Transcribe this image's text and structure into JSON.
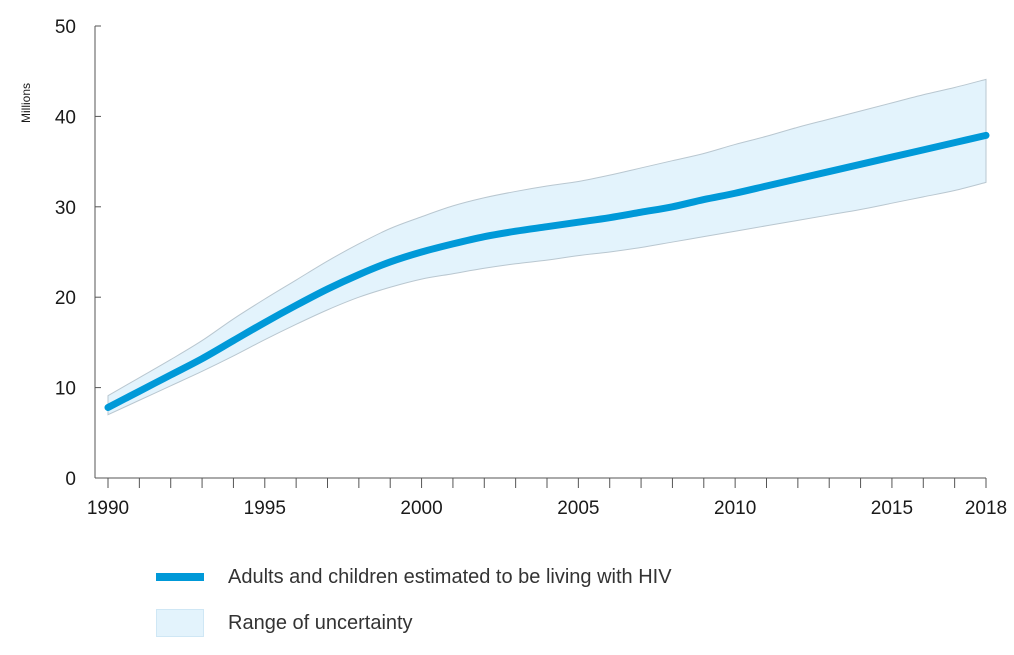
{
  "chart_data": {
    "type": "line",
    "title": "",
    "xlabel": "",
    "ylabel": "Millions",
    "xlim": [
      1990,
      2018
    ],
    "ylim": [
      0,
      50
    ],
    "yticks": [
      0,
      10,
      20,
      30,
      40,
      50
    ],
    "xtick_labels": [
      1990,
      1995,
      2000,
      2005,
      2010,
      2015,
      2018
    ],
    "minor_xticks": [
      1991,
      1992,
      1993,
      1994,
      1996,
      1997,
      1998,
      1999,
      2001,
      2002,
      2003,
      2004,
      2006,
      2007,
      2008,
      2009,
      2011,
      2012,
      2013,
      2014,
      2016,
      2017
    ],
    "x": [
      1990,
      1991,
      1992,
      1993,
      1994,
      1995,
      1996,
      1997,
      1998,
      1999,
      2000,
      2001,
      2002,
      2003,
      2004,
      2005,
      2006,
      2007,
      2008,
      2009,
      2010,
      2011,
      2012,
      2013,
      2014,
      2015,
      2016,
      2017,
      2018
    ],
    "series": [
      {
        "name": "Adults and children estimated to be living with HIV",
        "color": "#0099d8",
        "values": [
          7.8,
          9.6,
          11.4,
          13.2,
          15.2,
          17.2,
          19.1,
          20.9,
          22.5,
          23.9,
          25.0,
          25.9,
          26.7,
          27.3,
          27.8,
          28.3,
          28.8,
          29.4,
          30.0,
          30.8,
          31.5,
          32.3,
          33.1,
          33.9,
          34.7,
          35.5,
          36.3,
          37.1,
          37.9
        ]
      }
    ],
    "uncertainty_band": {
      "name": "Range of uncertainty",
      "color": "#e3f3fc",
      "lower": [
        7.0,
        8.6,
        10.2,
        11.8,
        13.5,
        15.3,
        17.0,
        18.6,
        20.0,
        21.1,
        22.0,
        22.6,
        23.2,
        23.7,
        24.1,
        24.6,
        25.0,
        25.5,
        26.1,
        26.7,
        27.3,
        27.9,
        28.5,
        29.1,
        29.7,
        30.4,
        31.1,
        31.8,
        32.7
      ],
      "upper": [
        9.1,
        11.1,
        13.1,
        15.2,
        17.6,
        19.8,
        21.9,
        24.0,
        25.9,
        27.6,
        28.9,
        30.1,
        31.0,
        31.7,
        32.3,
        32.8,
        33.5,
        34.3,
        35.1,
        35.9,
        36.9,
        37.8,
        38.8,
        39.7,
        40.6,
        41.5,
        42.4,
        43.2,
        44.1
      ]
    },
    "grid": false,
    "legend_position": "bottom-left"
  },
  "legend": {
    "line_label": "Adults and children estimated to be living with HIV",
    "band_label": "Range of uncertainty"
  }
}
